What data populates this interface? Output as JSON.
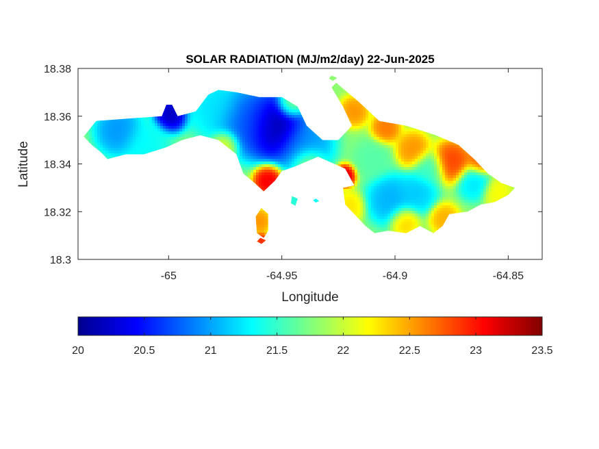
{
  "chart_data": {
    "type": "heatmap",
    "title": "SOLAR RADIATION (MJ/m2/day) 22-Jun-2025",
    "xlabel": "Longitude",
    "ylabel": "Latitude",
    "xlim": [
      -65.04,
      -64.835
    ],
    "ylim": [
      18.3,
      18.38
    ],
    "x_ticks": [
      -65,
      -64.95,
      -64.9,
      -64.85
    ],
    "x_tick_labels": [
      "-65",
      "-64.95",
      "-64.9",
      "-64.85"
    ],
    "y_ticks": [
      18.3,
      18.32,
      18.34,
      18.36,
      18.38
    ],
    "y_tick_labels": [
      "18.3",
      "18.32",
      "18.34",
      "18.36",
      "18.38"
    ],
    "colorbar": {
      "orientation": "horizontal",
      "location": "below",
      "limits": [
        20,
        23.5
      ],
      "ticks": [
        20,
        20.5,
        21,
        21.5,
        22,
        22.5,
        23,
        23.5
      ],
      "tick_labels": [
        "20",
        "20.5",
        "21",
        "21.5",
        "22",
        "22.5",
        "23",
        "23.5"
      ],
      "colormap": "jet"
    },
    "land_outline": [
      [
        -65.0375,
        18.3515
      ],
      [
        -65.032,
        18.358
      ],
      [
        -65.018,
        18.359
      ],
      [
        -65.003,
        18.36
      ],
      [
        -65.001,
        18.3648
      ],
      [
        -64.9985,
        18.3648
      ],
      [
        -64.996,
        18.36
      ],
      [
        -64.988,
        18.362
      ],
      [
        -64.9825,
        18.369
      ],
      [
        -64.978,
        18.371
      ],
      [
        -64.97,
        18.37
      ],
      [
        -64.96,
        18.368
      ],
      [
        -64.95,
        18.368
      ],
      [
        -64.943,
        18.364
      ],
      [
        -64.939,
        18.356
      ],
      [
        -64.932,
        18.35
      ],
      [
        -64.925,
        18.35
      ],
      [
        -64.919,
        18.356
      ],
      [
        -64.923,
        18.364
      ],
      [
        -64.928,
        18.372
      ],
      [
        -64.926,
        18.374
      ],
      [
        -64.916,
        18.366
      ],
      [
        -64.907,
        18.358
      ],
      [
        -64.895,
        18.356
      ],
      [
        -64.882,
        18.352
      ],
      [
        -64.872,
        18.348
      ],
      [
        -64.865,
        18.342
      ],
      [
        -64.859,
        18.336
      ],
      [
        -64.853,
        18.332
      ],
      [
        -64.847,
        18.33
      ],
      [
        -64.85,
        18.327
      ],
      [
        -64.856,
        18.324
      ],
      [
        -64.862,
        18.323
      ],
      [
        -64.868,
        18.32
      ],
      [
        -64.876,
        18.319
      ],
      [
        -64.879,
        18.314
      ],
      [
        -64.883,
        18.311
      ],
      [
        -64.889,
        18.314
      ],
      [
        -64.895,
        18.311
      ],
      [
        -64.903,
        18.312
      ],
      [
        -64.909,
        18.311
      ],
      [
        -64.913,
        18.314
      ],
      [
        -64.918,
        18.319
      ],
      [
        -64.922,
        18.323
      ],
      [
        -64.923,
        18.33
      ],
      [
        -64.918,
        18.331
      ],
      [
        -64.922,
        18.338
      ],
      [
        -64.934,
        18.343
      ],
      [
        -64.944,
        18.339
      ],
      [
        -64.95,
        18.337
      ],
      [
        -64.953,
        18.333
      ],
      [
        -64.958,
        18.3285
      ],
      [
        -64.962,
        18.332
      ],
      [
        -64.967,
        18.336
      ],
      [
        -64.97,
        18.344
      ],
      [
        -64.978,
        18.35
      ],
      [
        -64.986,
        18.352
      ],
      [
        -64.994,
        18.35
      ],
      [
        -65.001,
        18.347
      ],
      [
        -65.011,
        18.344
      ],
      [
        -65.019,
        18.344
      ],
      [
        -65.027,
        18.342
      ],
      [
        -65.03,
        18.345
      ],
      [
        -65.034,
        18.348
      ]
    ],
    "islets": [
      [
        [
          -64.959,
          18.3215
        ],
        [
          -64.956,
          18.319
        ],
        [
          -64.956,
          18.312
        ],
        [
          -64.958,
          18.309
        ],
        [
          -64.961,
          18.311
        ],
        [
          -64.9615,
          18.318
        ]
      ],
      [
        [
          -64.9455,
          18.3265
        ],
        [
          -64.943,
          18.3255
        ],
        [
          -64.944,
          18.3225
        ],
        [
          -64.946,
          18.3235
        ]
      ],
      [
        [
          -64.9595,
          18.309
        ],
        [
          -64.957,
          18.308
        ],
        [
          -64.959,
          18.3065
        ],
        [
          -64.961,
          18.3075
        ]
      ],
      [
        [
          -64.935,
          18.3255
        ],
        [
          -64.9335,
          18.3245
        ],
        [
          -64.935,
          18.3238
        ],
        [
          -64.9362,
          18.3248
        ]
      ],
      [
        [
          -64.928,
          18.377
        ],
        [
          -64.9255,
          18.376
        ],
        [
          -64.9275,
          18.3748
        ],
        [
          -64.9292,
          18.3758
        ]
      ]
    ],
    "background_value": 21.8,
    "hotspots": [
      {
        "lon": -64.953,
        "lat": 18.3555,
        "value": 20.0,
        "spread": 0.0065
      },
      {
        "lon": -64.965,
        "lat": 18.358,
        "value": 20.7,
        "spread": 0.007
      },
      {
        "lon": -64.999,
        "lat": 18.361,
        "value": 20.1,
        "spread": 0.0035
      },
      {
        "lon": -65.022,
        "lat": 18.354,
        "value": 20.9,
        "spread": 0.005
      },
      {
        "lon": -64.98,
        "lat": 18.364,
        "value": 21.2,
        "spread": 0.006
      },
      {
        "lon": -64.94,
        "lat": 18.348,
        "value": 20.9,
        "spread": 0.006
      },
      {
        "lon": -65.01,
        "lat": 18.348,
        "value": 21.3,
        "spread": 0.005
      },
      {
        "lon": -64.956,
        "lat": 18.333,
        "value": 23.2,
        "spread": 0.003
      },
      {
        "lon": -64.922,
        "lat": 18.335,
        "value": 23.3,
        "spread": 0.0022
      },
      {
        "lon": -64.875,
        "lat": 18.341,
        "value": 22.9,
        "spread": 0.004
      },
      {
        "lon": -64.862,
        "lat": 18.3415,
        "value": 22.8,
        "spread": 0.003
      },
      {
        "lon": -64.892,
        "lat": 18.346,
        "value": 22.6,
        "spread": 0.0035
      },
      {
        "lon": -64.904,
        "lat": 18.355,
        "value": 22.7,
        "spread": 0.003
      },
      {
        "lon": -64.918,
        "lat": 18.362,
        "value": 22.6,
        "spread": 0.003
      },
      {
        "lon": -64.902,
        "lat": 18.325,
        "value": 21.0,
        "spread": 0.005
      },
      {
        "lon": -64.89,
        "lat": 18.328,
        "value": 21.1,
        "spread": 0.004
      },
      {
        "lon": -64.865,
        "lat": 18.332,
        "value": 21.2,
        "spread": 0.0035
      },
      {
        "lon": -64.885,
        "lat": 18.338,
        "value": 21.5,
        "spread": 0.0035
      },
      {
        "lon": -64.896,
        "lat": 18.316,
        "value": 22.4,
        "spread": 0.003
      },
      {
        "lon": -64.878,
        "lat": 18.317,
        "value": 22.5,
        "spread": 0.003
      },
      {
        "lon": -64.855,
        "lat": 18.328,
        "value": 22.2,
        "spread": 0.003
      },
      {
        "lon": -64.92,
        "lat": 18.322,
        "value": 22.3,
        "spread": 0.003
      },
      {
        "lon": -64.91,
        "lat": 18.342,
        "value": 21.6,
        "spread": 0.004
      },
      {
        "lon": -64.96,
        "lat": 18.316,
        "value": 22.6,
        "spread": 0.0025
      },
      {
        "lon": -64.959,
        "lat": 18.308,
        "value": 23.0,
        "spread": 0.0015
      },
      {
        "lon": -64.944,
        "lat": 18.3245,
        "value": 21.4,
        "spread": 0.0015
      },
      {
        "lon": -64.935,
        "lat": 18.3248,
        "value": 21.3,
        "spread": 0.001
      },
      {
        "lon": -64.938,
        "lat": 18.34,
        "value": 22.0,
        "spread": 0.0035
      },
      {
        "lon": -64.975,
        "lat": 18.348,
        "value": 22.2,
        "spread": 0.003
      },
      {
        "lon": -64.946,
        "lat": 18.365,
        "value": 21.9,
        "spread": 0.003
      }
    ]
  }
}
